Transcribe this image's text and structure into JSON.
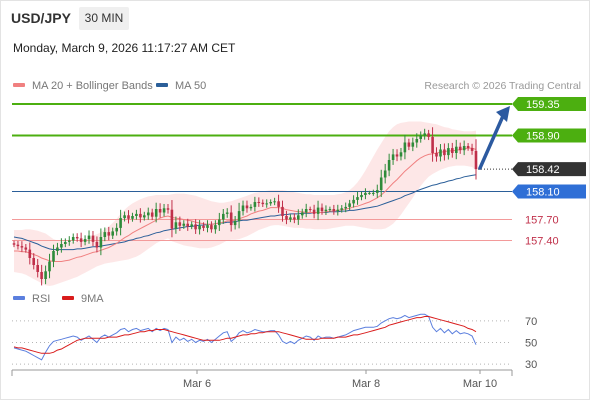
{
  "header": {
    "pair": "USD/JPY",
    "timeframe": "30 MIN",
    "datetime": "Monday, March 9, 2026 11:17:27 AM CET"
  },
  "legend": {
    "ma20_label": "MA 20 + Bollinger Bands",
    "ma50_label": "MA 50",
    "credit": "Research © 2026 Trading Central",
    "rsi_label": "RSI",
    "ma9_label": "9MA"
  },
  "colors": {
    "up": "#2e8b3a",
    "down": "#c0304a",
    "ma20": "#f08080",
    "bollinger_fill": "#fde3e3",
    "ma50": "#2b5f99",
    "target_green": "#4caf10",
    "support_red": "#f39a9a",
    "pivot_blue": "#2f6fd6",
    "current_dark": "#333333",
    "arrow": "#2c5aa0",
    "rsi": "#5b7fde",
    "rsi_ma": "#d91c1c"
  },
  "chart_data": [
    {
      "type": "candlestick",
      "title": "USD/JPY",
      "x_labels": [
        "Mar 6",
        "Mar 8",
        "Mar 10"
      ],
      "ylim": [
        156.55,
        159.55
      ],
      "levels": [
        {
          "label": "159.35",
          "value": 159.35,
          "kind": "target"
        },
        {
          "label": "158.90",
          "value": 158.9,
          "kind": "target"
        },
        {
          "label": "158.42",
          "value": 158.42,
          "kind": "current"
        },
        {
          "label": "158.10",
          "value": 158.1,
          "kind": "pivot"
        },
        {
          "label": "157.70",
          "value": 157.7,
          "kind": "support"
        },
        {
          "label": "157.40",
          "value": 157.4,
          "kind": "support"
        }
      ],
      "closes": [
        157.34,
        157.32,
        157.3,
        157.27,
        157.15,
        157.05,
        156.95,
        156.85,
        156.96,
        157.1,
        157.25,
        157.3,
        157.35,
        157.38,
        157.4,
        157.45,
        157.43,
        157.38,
        157.42,
        157.47,
        157.38,
        157.3,
        157.45,
        157.52,
        157.47,
        157.53,
        157.58,
        157.72,
        157.76,
        157.71,
        157.75,
        157.78,
        157.73,
        157.76,
        157.8,
        157.74,
        157.85,
        157.8,
        157.86,
        157.84,
        157.57,
        157.66,
        157.61,
        157.64,
        157.6,
        157.63,
        157.56,
        157.61,
        157.58,
        157.62,
        157.56,
        157.62,
        157.7,
        157.78,
        157.8,
        157.62,
        157.68,
        157.82,
        157.9,
        157.86,
        157.88,
        157.95,
        157.94,
        157.92,
        157.93,
        157.95,
        157.96,
        157.88,
        157.75,
        157.7,
        157.73,
        157.7,
        157.76,
        157.8,
        157.85,
        157.84,
        157.78,
        157.87,
        157.82,
        157.84,
        157.85,
        157.82,
        157.84,
        157.86,
        157.88,
        157.93,
        157.98,
        158.02,
        158.05,
        158.08,
        158.08,
        158.08,
        158.12,
        158.3,
        158.4,
        158.55,
        158.63,
        158.6,
        158.66,
        158.8,
        158.74,
        158.8,
        158.85,
        158.9,
        158.93,
        158.88,
        158.65,
        158.6,
        158.7,
        158.62,
        158.72,
        158.65,
        158.74,
        158.69,
        158.75,
        158.72,
        158.68,
        158.42
      ],
      "ma20": [
        157.25,
        157.25,
        157.24,
        157.24,
        157.22,
        157.2,
        157.18,
        157.15,
        157.13,
        157.11,
        157.1,
        157.1,
        157.1,
        157.11,
        157.12,
        157.14,
        157.16,
        157.17,
        157.19,
        157.21,
        157.23,
        157.24,
        157.26,
        157.28,
        157.3,
        157.33,
        157.36,
        157.4,
        157.44,
        157.47,
        157.51,
        157.54,
        157.57,
        157.6,
        157.63,
        157.66,
        157.69,
        157.72,
        157.74,
        157.75,
        157.73,
        157.72,
        157.71,
        157.7,
        157.69,
        157.68,
        157.66,
        157.65,
        157.64,
        157.63,
        157.63,
        157.64,
        157.65,
        157.66,
        157.68,
        157.68,
        157.69,
        157.71,
        157.73,
        157.75,
        157.78,
        157.8,
        157.82,
        157.83,
        157.85,
        157.87,
        157.87,
        157.87,
        157.86,
        157.84,
        157.83,
        157.82,
        157.81,
        157.81,
        157.8,
        157.8,
        157.8,
        157.8,
        157.8,
        157.81,
        157.82,
        157.82,
        157.83,
        157.84,
        157.85,
        157.86,
        157.88,
        157.89,
        157.91,
        157.93,
        157.95,
        157.98,
        158.01,
        158.05,
        158.1,
        158.16,
        158.22,
        158.27,
        158.33,
        158.39,
        158.44,
        158.49,
        158.54,
        158.58,
        158.61,
        158.63,
        158.64,
        158.65,
        158.66,
        158.67,
        158.68,
        158.68,
        158.69,
        158.7,
        158.71,
        158.72,
        158.72,
        158.7
      ],
      "ma50": [
        157.45,
        157.44,
        157.43,
        157.41,
        157.39,
        157.37,
        157.35,
        157.32,
        157.3,
        157.28,
        157.27,
        157.27,
        157.27,
        157.27,
        157.27,
        157.27,
        157.28,
        157.28,
        157.29,
        157.3,
        157.31,
        157.31,
        157.32,
        157.33,
        157.34,
        157.35,
        157.36,
        157.37,
        157.38,
        157.4,
        157.41,
        157.43,
        157.44,
        157.46,
        157.47,
        157.49,
        157.51,
        157.52,
        157.54,
        157.55,
        157.56,
        157.57,
        157.58,
        157.59,
        157.6,
        157.6,
        157.61,
        157.62,
        157.62,
        157.63,
        157.63,
        157.64,
        157.65,
        157.65,
        157.66,
        157.66,
        157.67,
        157.68,
        157.69,
        157.69,
        157.7,
        157.71,
        157.72,
        157.73,
        157.74,
        157.75,
        157.75,
        157.76,
        157.77,
        157.77,
        157.78,
        157.78,
        157.78,
        157.79,
        157.79,
        157.79,
        157.8,
        157.8,
        157.8,
        157.8,
        157.81,
        157.81,
        157.81,
        157.82,
        157.82,
        157.83,
        157.83,
        157.84,
        157.85,
        157.86,
        157.87,
        157.88,
        157.89,
        157.91,
        157.93,
        157.95,
        157.97,
        157.99,
        158.01,
        158.04,
        158.06,
        158.08,
        158.11,
        158.13,
        158.15,
        158.17,
        158.19,
        158.2,
        158.22,
        158.23,
        158.25,
        158.26,
        158.28,
        158.29,
        158.31,
        158.32,
        158.33,
        158.34
      ],
      "bollinger_upper": [
        157.55,
        157.55,
        157.55,
        157.56,
        157.56,
        157.55,
        157.54,
        157.52,
        157.5,
        157.46,
        157.42,
        157.4,
        157.39,
        157.38,
        157.38,
        157.38,
        157.38,
        157.39,
        157.41,
        157.44,
        157.47,
        157.49,
        157.52,
        157.56,
        157.6,
        157.65,
        157.71,
        157.78,
        157.84,
        157.89,
        157.93,
        157.96,
        157.99,
        158.01,
        158.03,
        158.04,
        158.05,
        158.05,
        158.05,
        158.05,
        158.06,
        158.07,
        158.07,
        158.07,
        158.06,
        158.05,
        158.04,
        158.02,
        158.0,
        157.98,
        157.96,
        157.95,
        157.94,
        157.94,
        157.95,
        157.96,
        157.98,
        158.0,
        158.02,
        158.04,
        158.06,
        158.08,
        158.09,
        158.1,
        158.11,
        158.12,
        158.12,
        158.12,
        158.12,
        158.11,
        158.1,
        158.09,
        158.08,
        158.07,
        158.06,
        158.06,
        158.05,
        158.05,
        158.05,
        158.05,
        158.05,
        158.05,
        158.06,
        158.07,
        158.09,
        158.12,
        158.17,
        158.23,
        158.31,
        158.4,
        158.5,
        158.6,
        158.7,
        158.79,
        158.88,
        158.96,
        159.02,
        159.06,
        159.08,
        159.09,
        159.1,
        159.1,
        159.1,
        159.1,
        159.09,
        159.08,
        159.07,
        159.06,
        159.04,
        159.02,
        159.01,
        158.99,
        158.98,
        158.97,
        158.96,
        158.96,
        158.96,
        158.97
      ],
      "bollinger_lower": [
        156.95,
        156.94,
        156.93,
        156.91,
        156.88,
        156.85,
        156.82,
        156.79,
        156.76,
        156.75,
        156.76,
        156.78,
        156.8,
        156.82,
        156.84,
        156.86,
        156.88,
        156.91,
        156.94,
        156.97,
        157.0,
        157.03,
        157.05,
        157.07,
        157.08,
        157.09,
        157.1,
        157.11,
        157.12,
        157.13,
        157.15,
        157.17,
        157.2,
        157.24,
        157.28,
        157.32,
        157.36,
        157.39,
        157.41,
        157.43,
        157.39,
        157.37,
        157.35,
        157.33,
        157.32,
        157.31,
        157.3,
        157.29,
        157.29,
        157.29,
        157.3,
        157.32,
        157.34,
        157.37,
        157.4,
        157.41,
        157.41,
        157.42,
        157.44,
        157.46,
        157.49,
        157.52,
        157.55,
        157.57,
        157.59,
        157.61,
        157.62,
        157.62,
        157.61,
        157.6,
        157.59,
        157.58,
        157.58,
        157.58,
        157.57,
        157.57,
        157.56,
        157.56,
        157.56,
        157.56,
        157.57,
        157.58,
        157.59,
        157.6,
        157.61,
        157.61,
        157.61,
        157.6,
        157.59,
        157.58,
        157.57,
        157.56,
        157.56,
        157.56,
        157.57,
        157.6,
        157.64,
        157.7,
        157.77,
        157.85,
        157.93,
        158.01,
        158.1,
        158.18,
        158.25,
        158.31,
        158.35,
        158.38,
        158.41,
        158.43,
        158.45,
        158.46,
        158.47,
        158.47,
        158.47,
        158.46,
        158.45,
        158.4
      ]
    },
    {
      "type": "line",
      "title": "RSI",
      "ylim": [
        20,
        80
      ],
      "yticks": [
        "70",
        "50",
        "30"
      ],
      "series": [
        {
          "name": "RSI",
          "values": [
            45,
            44,
            43,
            42,
            40,
            38,
            36,
            34,
            41,
            47,
            51,
            52,
            53,
            54,
            55,
            56,
            55,
            52,
            54,
            56,
            53,
            50,
            55,
            57,
            55,
            57,
            59,
            62,
            63,
            60,
            62,
            63,
            61,
            62,
            63,
            60,
            63,
            61,
            63,
            62,
            50,
            55,
            52,
            54,
            51,
            53,
            50,
            52,
            51,
            53,
            50,
            53,
            56,
            59,
            60,
            51,
            54,
            59,
            61,
            59,
            60,
            62,
            61,
            60,
            60,
            61,
            61,
            57,
            51,
            49,
            51,
            49,
            52,
            54,
            56,
            55,
            52,
            56,
            54,
            55,
            55,
            54,
            55,
            56,
            57,
            59,
            61,
            62,
            63,
            64,
            64,
            64,
            65,
            68,
            70,
            72,
            73,
            72,
            73,
            75,
            73,
            74,
            75,
            76,
            76,
            74,
            64,
            60,
            63,
            59,
            62,
            58,
            61,
            58,
            59,
            58,
            56,
            48
          ]
        },
        {
          "name": "9MA",
          "values": [
            46,
            45,
            45,
            44,
            43,
            42,
            41,
            40,
            40,
            40,
            41,
            43,
            44,
            46,
            48,
            50,
            52,
            53,
            54,
            54,
            54,
            54,
            54,
            54,
            55,
            55,
            55,
            56,
            57,
            57,
            58,
            59,
            60,
            60,
            61,
            61,
            62,
            62,
            62,
            61,
            60,
            59,
            58,
            57,
            56,
            55,
            54,
            53,
            52,
            52,
            52,
            52,
            52,
            53,
            54,
            54,
            55,
            56,
            57,
            57,
            58,
            58,
            59,
            59,
            60,
            60,
            60,
            60,
            59,
            58,
            57,
            56,
            55,
            54,
            53,
            53,
            53,
            53,
            54,
            54,
            54,
            54,
            55,
            55,
            55,
            56,
            57,
            57,
            58,
            59,
            60,
            61,
            62,
            63,
            64,
            66,
            67,
            68,
            69,
            70,
            71,
            72,
            73,
            73,
            74,
            74,
            73,
            72,
            71,
            70,
            69,
            68,
            67,
            66,
            65,
            63,
            62,
            60
          ]
        }
      ]
    }
  ]
}
